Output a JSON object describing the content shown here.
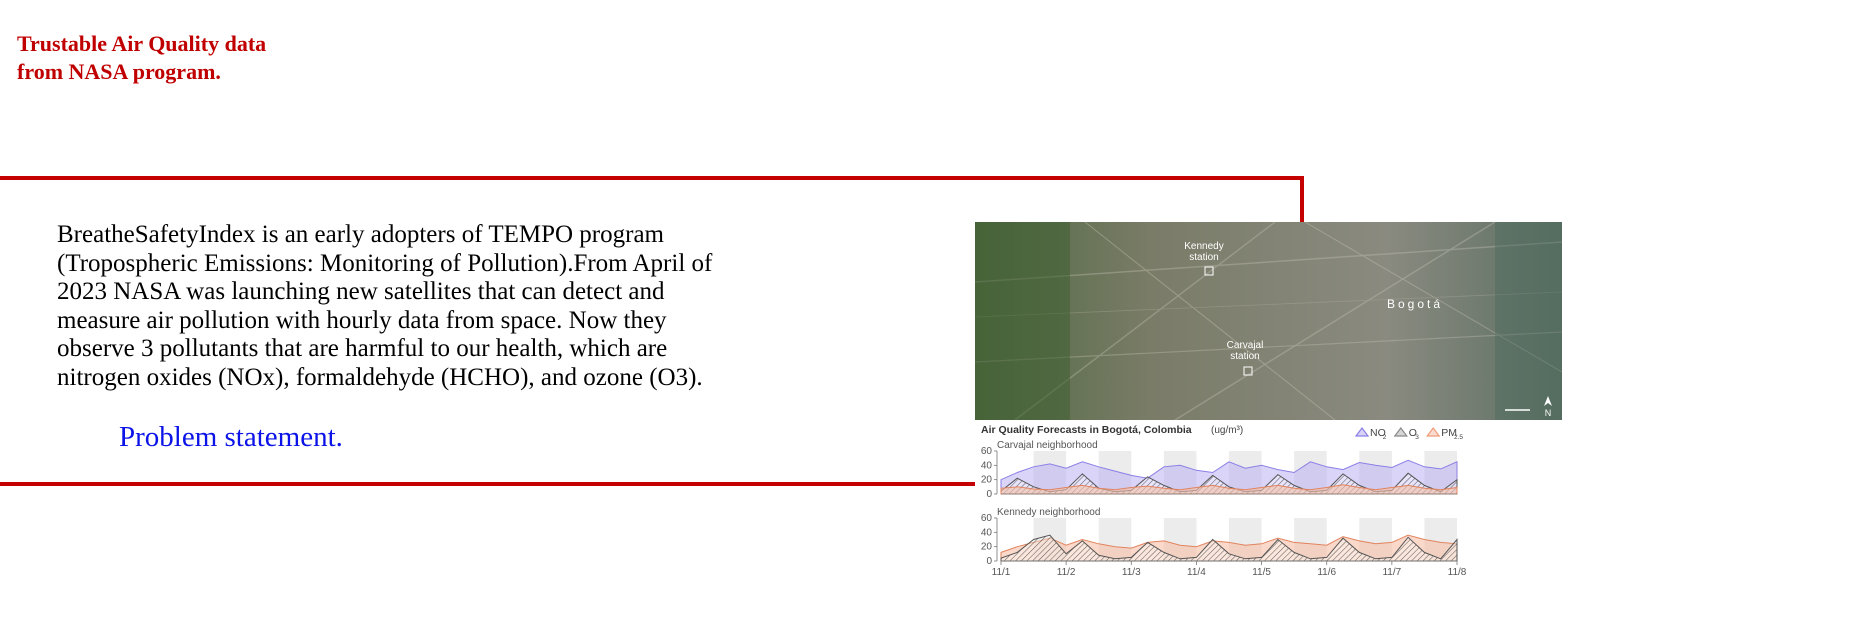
{
  "header": {
    "line1": "Trustable Air Quality data",
    "line2": "from NASA program."
  },
  "main": {
    "intro_text": "BreatheSafetyIndex is an early adopters of TEMPO program (Tropospheric Emissions: Monitoring of Pollution).From April of 2023 NASA was launching new satellites that can detect and measure air pollution with hourly data from space. Now they observe 3 pollutants that are harmful to our health, which are nitrogen oxides (NOx), formaldehyde (HCHO), and ozone (O3).",
    "problem_link": "Problem statement."
  },
  "colors": {
    "accent_red": "#c40000",
    "heading_red": "#c00000",
    "link_blue": "#0b13e8"
  },
  "figure": {
    "map": {
      "labels": {
        "kennedy_line1": "Kennedy",
        "kennedy_line2": "station",
        "carvajal_line1": "Carvajal",
        "carvajal_line2": "station",
        "city": "Bogotá",
        "north": "N"
      }
    },
    "chart_data": {
      "type": "area",
      "title": "Air Quality Forecasts in Bogotá, Colombia",
      "units": "(ug/m³)",
      "legend": [
        {
          "label": "NO",
          "sub": "2",
          "color": "#8b7fe6"
        },
        {
          "label": "O",
          "sub": "3",
          "color": "#8a8a8a"
        },
        {
          "label": "PM",
          "sub": "2.5",
          "color": "#ef9b78"
        }
      ],
      "legend_position": "top-right",
      "x_ticks": [
        "11/1",
        "11/2",
        "11/3",
        "11/4",
        "11/5",
        "11/6",
        "11/7",
        "11/8"
      ],
      "panels": [
        {
          "name": "Carvajal neighborhood",
          "ylim": [
            0,
            60
          ],
          "y_ticks": [
            "60",
            "40",
            "20",
            "0"
          ],
          "x": [
            0,
            0.25,
            0.5,
            0.75,
            1,
            1.25,
            1.5,
            1.75,
            2,
            2.25,
            2.5,
            2.75,
            3,
            3.25,
            3.5,
            3.75,
            4,
            4.25,
            4.5,
            4.75,
            5,
            5.25,
            5.5,
            5.75,
            6,
            6.25,
            6.5,
            6.75,
            7
          ],
          "series": [
            {
              "name": "NO2",
              "values": [
                20,
                30,
                38,
                42,
                36,
                45,
                38,
                32,
                26,
                22,
                38,
                40,
                33,
                30,
                45,
                36,
                40,
                34,
                30,
                45,
                38,
                34,
                44,
                40,
                37,
                47,
                38,
                35,
                45
              ]
            },
            {
              "name": "O3",
              "values": [
                4,
                22,
                10,
                3,
                6,
                28,
                8,
                3,
                5,
                24,
                12,
                3,
                5,
                26,
                10,
                3,
                5,
                27,
                12,
                3,
                5,
                28,
                12,
                3,
                5,
                29,
                12,
                3,
                20
              ]
            },
            {
              "name": "PM2.5",
              "values": [
                8,
                10,
                7,
                6,
                9,
                12,
                8,
                6,
                9,
                11,
                8,
                6,
                9,
                12,
                8,
                6,
                9,
                12,
                8,
                6,
                9,
                13,
                9,
                6,
                9,
                12,
                8,
                6,
                9
              ]
            }
          ]
        },
        {
          "name": "Kennedy neighborhood",
          "ylim": [
            0,
            60
          ],
          "y_ticks": [
            "60",
            "40",
            "20",
            "0"
          ],
          "x": [
            0,
            0.25,
            0.5,
            0.75,
            1,
            1.25,
            1.5,
            1.75,
            2,
            2.25,
            2.5,
            2.75,
            3,
            3.25,
            3.5,
            3.75,
            4,
            4.25,
            4.5,
            4.75,
            5,
            5.25,
            5.5,
            5.75,
            6,
            6.25,
            6.5,
            6.75,
            7
          ],
          "series": [
            {
              "name": "PM2.5",
              "values": [
                12,
                20,
                26,
                32,
                22,
                30,
                24,
                20,
                18,
                26,
                28,
                22,
                20,
                28,
                26,
                22,
                24,
                32,
                26,
                24,
                22,
                34,
                28,
                24,
                26,
                36,
                30,
                26,
                24
              ]
            },
            {
              "name": "O3",
              "values": [
                4,
                12,
                30,
                36,
                10,
                28,
                8,
                3,
                5,
                26,
                12,
                3,
                5,
                30,
                10,
                3,
                5,
                30,
                12,
                3,
                5,
                32,
                12,
                3,
                5,
                33,
                12,
                3,
                30
              ]
            }
          ]
        }
      ]
    }
  }
}
